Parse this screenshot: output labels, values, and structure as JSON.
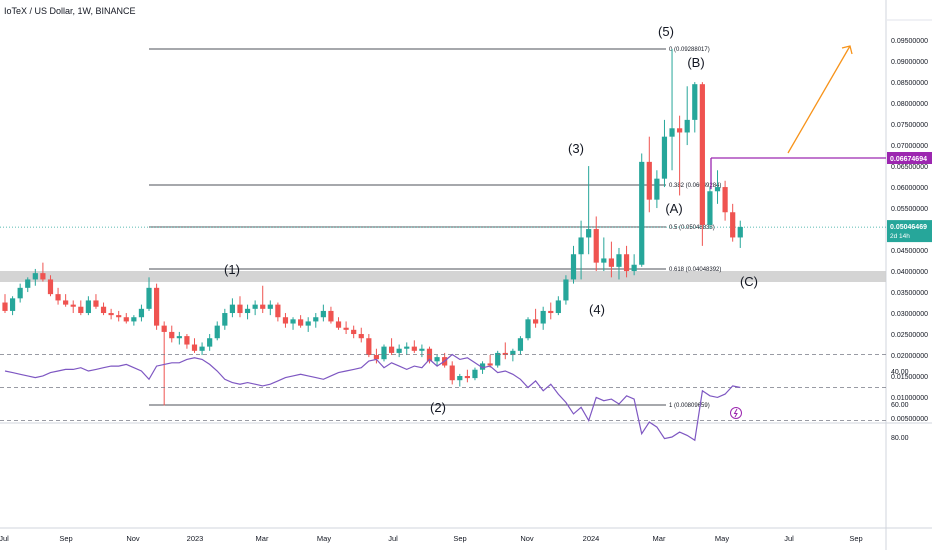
{
  "header": {
    "title": "IoTeX / US Dollar, 1W, BINANCE",
    "currency": "USD"
  },
  "colors": {
    "up": "#26a69a",
    "down": "#ef5350",
    "rsi_line": "#7e57c2",
    "rsi_band": "#ede7f6",
    "marker": "#9c27b0",
    "arrow": "#f7931a",
    "price_badge": "#26a69a",
    "support_zone": "#cccccc"
  },
  "y_axis": {
    "ticks": [
      "0.09500000",
      "0.09000000",
      "0.08500000",
      "0.08000000",
      "0.07500000",
      "0.07000000",
      "0.06500000",
      "0.06000000",
      "0.05500000",
      "0.05000000",
      "0.04500000",
      "0.04000000",
      "0.03500000",
      "0.03000000",
      "0.02500000",
      "0.02000000",
      "0.01500000",
      "0.01000000",
      "0.00500000"
    ],
    "price_label": "0.06674694",
    "last_price": "0.05046469",
    "countdown": "2d 14h"
  },
  "rsi_axis": {
    "ticks": [
      "80.00",
      "60.00",
      "40.00"
    ]
  },
  "x_axis": {
    "labels": [
      "Jul",
      "Sep",
      "Nov",
      "2023",
      "Mar",
      "May",
      "Jul",
      "Sep",
      "Nov",
      "2024",
      "Mar",
      "May",
      "Jul",
      "Sep"
    ]
  },
  "fib_levels": [
    {
      "label": "0 (0.09288017)"
    },
    {
      "label": "0.382 (0.06049284)"
    },
    {
      "label": "0.5 (0.05048838)"
    },
    {
      "label": "0.618 (0.04048392)"
    },
    {
      "label": "1 (0.00809659)"
    }
  ],
  "wave_labels": [
    "(1)",
    "(2)",
    "(3)",
    "(4)",
    "(5)",
    "(A)",
    "(B)",
    "(C)"
  ],
  "chart_data": {
    "type": "candlestick",
    "interval": "1W",
    "ylim": [
      0.005,
      0.098
    ],
    "candles": [
      [
        0.0325,
        0.0345,
        0.03,
        0.0305
      ],
      [
        0.0305,
        0.034,
        0.0295,
        0.0335
      ],
      [
        0.0335,
        0.037,
        0.0325,
        0.036
      ],
      [
        0.036,
        0.0385,
        0.035,
        0.038
      ],
      [
        0.038,
        0.0405,
        0.0365,
        0.0395
      ],
      [
        0.0395,
        0.042,
        0.0375,
        0.038
      ],
      [
        0.038,
        0.039,
        0.034,
        0.0345
      ],
      [
        0.0345,
        0.036,
        0.032,
        0.033
      ],
      [
        0.033,
        0.0345,
        0.0315,
        0.032
      ],
      [
        0.032,
        0.033,
        0.03,
        0.0315
      ],
      [
        0.0315,
        0.033,
        0.0295,
        0.03
      ],
      [
        0.03,
        0.034,
        0.0295,
        0.033
      ],
      [
        0.033,
        0.0345,
        0.031,
        0.0315
      ],
      [
        0.0315,
        0.0325,
        0.0295,
        0.03
      ],
      [
        0.03,
        0.031,
        0.0285,
        0.0295
      ],
      [
        0.0295,
        0.0305,
        0.028,
        0.029
      ],
      [
        0.029,
        0.03,
        0.0275,
        0.028
      ],
      [
        0.028,
        0.0295,
        0.027,
        0.029
      ],
      [
        0.029,
        0.032,
        0.028,
        0.031
      ],
      [
        0.031,
        0.0385,
        0.0305,
        0.036
      ],
      [
        0.036,
        0.037,
        0.026,
        0.027
      ],
      [
        0.027,
        0.028,
        0.008,
        0.0255
      ],
      [
        0.0255,
        0.027,
        0.023,
        0.024
      ],
      [
        0.024,
        0.0255,
        0.0225,
        0.0245
      ],
      [
        0.0245,
        0.025,
        0.0215,
        0.0225
      ],
      [
        0.0225,
        0.024,
        0.0205,
        0.021
      ],
      [
        0.021,
        0.023,
        0.02,
        0.022
      ],
      [
        0.022,
        0.025,
        0.021,
        0.024
      ],
      [
        0.024,
        0.028,
        0.0235,
        0.027
      ],
      [
        0.027,
        0.031,
        0.026,
        0.03
      ],
      [
        0.03,
        0.0335,
        0.029,
        0.032
      ],
      [
        0.032,
        0.034,
        0.029,
        0.03
      ],
      [
        0.03,
        0.032,
        0.0285,
        0.031
      ],
      [
        0.031,
        0.033,
        0.0295,
        0.032
      ],
      [
        0.032,
        0.0365,
        0.03,
        0.031
      ],
      [
        0.031,
        0.033,
        0.0295,
        0.032
      ],
      [
        0.032,
        0.0325,
        0.028,
        0.029
      ],
      [
        0.029,
        0.03,
        0.0265,
        0.0275
      ],
      [
        0.0275,
        0.029,
        0.026,
        0.0285
      ],
      [
        0.0285,
        0.0295,
        0.0265,
        0.027
      ],
      [
        0.027,
        0.029,
        0.0255,
        0.028
      ],
      [
        0.028,
        0.03,
        0.0265,
        0.029
      ],
      [
        0.029,
        0.032,
        0.028,
        0.0305
      ],
      [
        0.0305,
        0.0315,
        0.0275,
        0.028
      ],
      [
        0.028,
        0.029,
        0.026,
        0.0265
      ],
      [
        0.0265,
        0.028,
        0.025,
        0.026
      ],
      [
        0.026,
        0.027,
        0.024,
        0.025
      ],
      [
        0.025,
        0.0265,
        0.023,
        0.024
      ],
      [
        0.024,
        0.025,
        0.0195,
        0.02
      ],
      [
        0.02,
        0.0215,
        0.018,
        0.019
      ],
      [
        0.019,
        0.0225,
        0.0185,
        0.022
      ],
      [
        0.022,
        0.024,
        0.02,
        0.0205
      ],
      [
        0.0205,
        0.0225,
        0.0195,
        0.0215
      ],
      [
        0.0215,
        0.023,
        0.02,
        0.022
      ],
      [
        0.022,
        0.0235,
        0.0205,
        0.021
      ],
      [
        0.021,
        0.0225,
        0.0195,
        0.0215
      ],
      [
        0.0215,
        0.022,
        0.018,
        0.0185
      ],
      [
        0.0185,
        0.02,
        0.0175,
        0.0195
      ],
      [
        0.0195,
        0.0205,
        0.017,
        0.0175
      ],
      [
        0.0175,
        0.0185,
        0.013,
        0.014
      ],
      [
        0.014,
        0.0155,
        0.0125,
        0.015
      ],
      [
        0.015,
        0.0165,
        0.0135,
        0.0145
      ],
      [
        0.0145,
        0.017,
        0.014,
        0.0165
      ],
      [
        0.0165,
        0.0185,
        0.0155,
        0.018
      ],
      [
        0.018,
        0.02,
        0.017,
        0.0175
      ],
      [
        0.0175,
        0.021,
        0.017,
        0.0205
      ],
      [
        0.0205,
        0.023,
        0.019,
        0.02
      ],
      [
        0.02,
        0.0215,
        0.0185,
        0.021
      ],
      [
        0.021,
        0.0245,
        0.02,
        0.024
      ],
      [
        0.024,
        0.029,
        0.0235,
        0.0285
      ],
      [
        0.0285,
        0.031,
        0.0265,
        0.0275
      ],
      [
        0.0275,
        0.0315,
        0.026,
        0.0305
      ],
      [
        0.0305,
        0.0325,
        0.0285,
        0.03
      ],
      [
        0.03,
        0.034,
        0.0295,
        0.033
      ],
      [
        0.033,
        0.039,
        0.032,
        0.038
      ],
      [
        0.038,
        0.046,
        0.037,
        0.044
      ],
      [
        0.044,
        0.052,
        0.038,
        0.048
      ],
      [
        0.048,
        0.065,
        0.044,
        0.05
      ],
      [
        0.05,
        0.053,
        0.04,
        0.042
      ],
      [
        0.042,
        0.048,
        0.04,
        0.043
      ],
      [
        0.043,
        0.047,
        0.0385,
        0.041
      ],
      [
        0.041,
        0.0455,
        0.038,
        0.044
      ],
      [
        0.044,
        0.046,
        0.0385,
        0.04
      ],
      [
        0.04,
        0.044,
        0.039,
        0.0415
      ],
      [
        0.0415,
        0.068,
        0.041,
        0.066
      ],
      [
        0.066,
        0.072,
        0.054,
        0.057
      ],
      [
        0.057,
        0.064,
        0.055,
        0.062
      ],
      [
        0.062,
        0.076,
        0.06,
        0.072
      ],
      [
        0.072,
        0.0929,
        0.064,
        0.074
      ],
      [
        0.074,
        0.077,
        0.058,
        0.073
      ],
      [
        0.073,
        0.084,
        0.07,
        0.076
      ],
      [
        0.076,
        0.085,
        0.073,
        0.0845
      ],
      [
        0.0845,
        0.085,
        0.046,
        0.051
      ],
      [
        0.051,
        0.06,
        0.05,
        0.059
      ],
      [
        0.059,
        0.064,
        0.056,
        0.06
      ],
      [
        0.06,
        0.0615,
        0.052,
        0.054
      ],
      [
        0.054,
        0.056,
        0.047,
        0.048
      ],
      [
        0.048,
        0.052,
        0.0455,
        0.0505
      ]
    ],
    "rsi": [
      40,
      41,
      42,
      43,
      44,
      43,
      41,
      40,
      39,
      39,
      38,
      40,
      39,
      38,
      37,
      37,
      36,
      38,
      40,
      45,
      37,
      36,
      35,
      35,
      33,
      32,
      33,
      36,
      40,
      45,
      47,
      48,
      47,
      48,
      49,
      48,
      46,
      44,
      43,
      42,
      43,
      44,
      45,
      43,
      41,
      40,
      39,
      38,
      34,
      33,
      38,
      35,
      37,
      39,
      37,
      38,
      33,
      37,
      34,
      30,
      33,
      32,
      35,
      38,
      37,
      41,
      40,
      42,
      45,
      50,
      46,
      52,
      48,
      54,
      59,
      66,
      62,
      70,
      56,
      58,
      57,
      60,
      55,
      57,
      78,
      71,
      74,
      81,
      80,
      77,
      79,
      82,
      52,
      55,
      56,
      54,
      49,
      50
    ],
    "rsi_ylim": [
      20,
      90
    ],
    "rsi_bands": [
      70,
      50,
      30
    ]
  }
}
